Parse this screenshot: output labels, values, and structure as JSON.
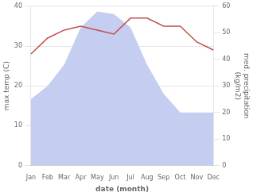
{
  "chart_data": {
    "type": "line",
    "xlabel": "date (month)",
    "ylabel": "max temp (C)",
    "y2label": "med. precipitation\n(kg/m2)",
    "categories": [
      "Jan",
      "Feb",
      "Mar",
      "Apr",
      "May",
      "Jun",
      "Jul",
      "Aug",
      "Sep",
      "Oct",
      "Nov",
      "Dec"
    ],
    "series": [
      {
        "type": "line",
        "color": "#c0504d",
        "values": [
          28,
          32,
          34,
          35,
          34,
          33,
          37,
          37,
          35,
          35,
          31,
          29
        ]
      },
      {
        "type": "area",
        "color": "#c5cdf0",
        "axis": "y2",
        "values": [
          25,
          30,
          38,
          52,
          58,
          57,
          52,
          38,
          27,
          20,
          20,
          20
        ]
      }
    ],
    "ylim": [
      0,
      40
    ],
    "yticks": [
      0,
      10,
      20,
      30,
      40
    ],
    "y2lim": [
      0,
      60
    ],
    "y2ticks": [
      0,
      10,
      20,
      30,
      40,
      50,
      60
    ],
    "grid": true
  }
}
